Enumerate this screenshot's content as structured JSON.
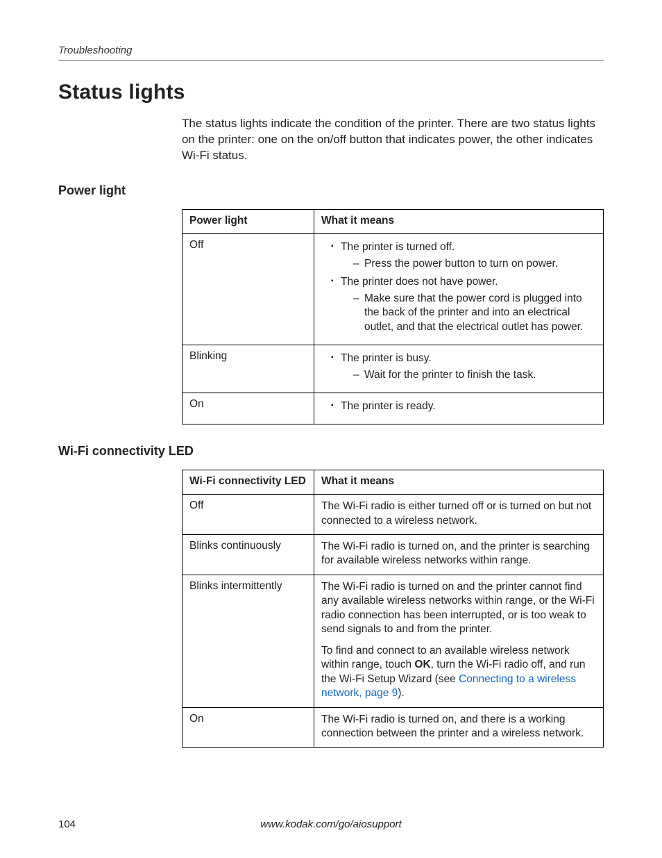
{
  "page": {
    "running_head": "Troubleshooting",
    "section_title": "Status lights",
    "intro": "The status lights indicate the condition of the printer. There are two status lights on the printer: one on the on/off button that indicates power, the other indicates Wi-Fi status.",
    "page_number": "104",
    "footer_url": "www.kodak.com/go/aiosupport"
  },
  "power_section": {
    "heading": "Power light",
    "table": {
      "col1_header": "Power light",
      "col2_header": "What it means",
      "rows": {
        "off": {
          "label": "Off",
          "b1": "The printer is turned off.",
          "b1d1": "Press the power button to turn on power.",
          "b2": "The printer does not have power.",
          "b2d1": "Make sure that the power cord is plugged into the back of the printer and into an electrical outlet, and that the electrical outlet has power."
        },
        "blinking": {
          "label": "Blinking",
          "b1": "The printer is busy.",
          "b1d1": "Wait for the printer to finish the task."
        },
        "on": {
          "label": "On",
          "b1": "The printer is ready."
        }
      }
    }
  },
  "wifi_section": {
    "heading": "Wi-Fi connectivity LED",
    "table": {
      "col1_header": "Wi-Fi connectivity LED",
      "col2_header": "What it means",
      "rows": {
        "off": {
          "label": "Off",
          "text": "The Wi-Fi radio is either turned off or is turned on but not connected to a wireless network."
        },
        "blinks_cont": {
          "label": "Blinks continuously",
          "text": "The Wi-Fi radio is turned on, and the printer is searching for available wireless networks within range."
        },
        "blinks_int": {
          "label": "Blinks intermittently",
          "p1": "The Wi-Fi radio is turned on and the printer cannot find any available wireless networks within range, or the Wi-Fi radio connection has been interrupted, or is too weak to send signals to and from the printer.",
          "p2_a": "To find and connect to an available wireless network within range, touch ",
          "p2_bold": "OK",
          "p2_b": ", turn the Wi-Fi radio off, and run the Wi-Fi Setup Wizard (see ",
          "p2_link": "Connecting to a wireless network, page 9",
          "p2_c": ")."
        },
        "on": {
          "label": "On",
          "text": "The Wi-Fi radio is turned on, and there is a working connection between the printer and a wireless network."
        }
      }
    }
  },
  "style": {
    "link_color": "#1566c0",
    "text_color": "#222222",
    "rule_color": "#777777",
    "border_color": "#000000",
    "background": "#ffffff"
  }
}
